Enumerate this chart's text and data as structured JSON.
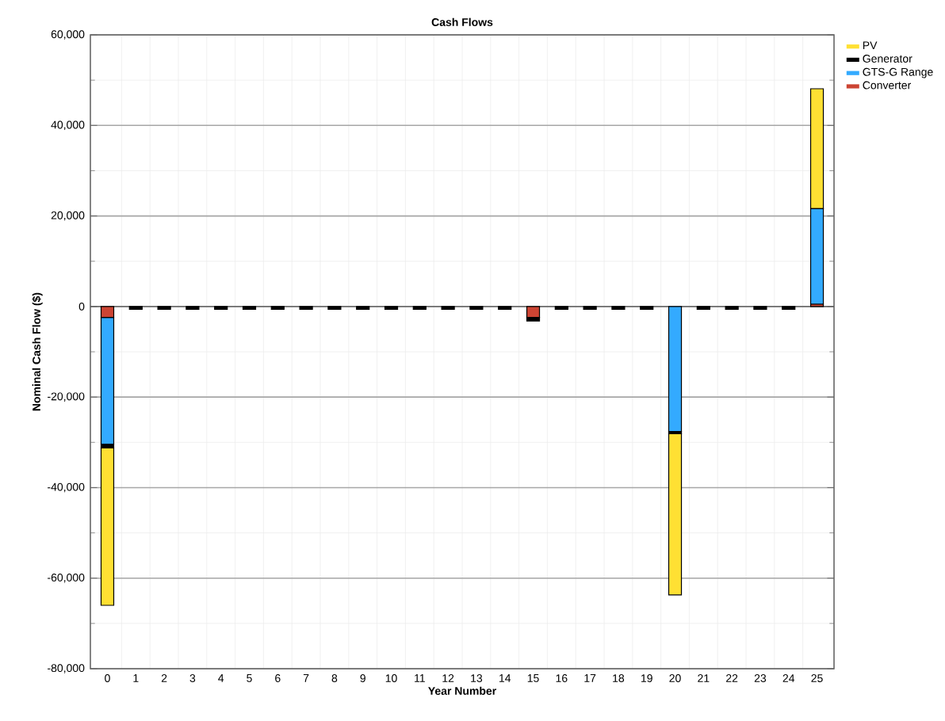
{
  "chart_data": {
    "type": "bar",
    "title": "Cash Flows",
    "xlabel": "Year Number",
    "ylabel": "Nominal Cash Flow ($)",
    "categories": [
      "0",
      "1",
      "2",
      "3",
      "4",
      "5",
      "6",
      "7",
      "8",
      "9",
      "10",
      "11",
      "12",
      "13",
      "14",
      "15",
      "16",
      "17",
      "18",
      "19",
      "20",
      "21",
      "22",
      "23",
      "24",
      "25"
    ],
    "stacked": true,
    "series": [
      {
        "name": "Converter",
        "color": "#cc4433",
        "values": [
          -2400,
          0,
          0,
          0,
          0,
          0,
          0,
          0,
          0,
          0,
          0,
          0,
          0,
          0,
          0,
          -2400,
          0,
          0,
          0,
          0,
          0,
          0,
          0,
          0,
          0,
          500
        ]
      },
      {
        "name": "GTS-G Range",
        "color": "#33aaff",
        "values": [
          -28000,
          0,
          0,
          0,
          0,
          0,
          0,
          0,
          0,
          0,
          0,
          0,
          0,
          0,
          0,
          0,
          0,
          0,
          0,
          0,
          -27600,
          0,
          0,
          0,
          0,
          21100
        ]
      },
      {
        "name": "Generator",
        "color": "#000000",
        "values": [
          -800,
          -600,
          -600,
          -600,
          -600,
          -600,
          -600,
          -600,
          -600,
          -600,
          -600,
          -600,
          -600,
          -600,
          -600,
          -800,
          -600,
          -600,
          -600,
          -600,
          -500,
          -600,
          -600,
          -600,
          -600,
          0
        ]
      },
      {
        "name": "PV",
        "color": "#ffe033",
        "values": [
          -34800,
          0,
          0,
          0,
          0,
          0,
          0,
          0,
          0,
          0,
          0,
          0,
          0,
          0,
          0,
          0,
          0,
          0,
          0,
          0,
          -35600,
          0,
          0,
          0,
          0,
          26500
        ]
      }
    ],
    "ylim": [
      -80000,
      60000
    ],
    "yticks": [
      {
        "value": -80000,
        "label": "-80,000"
      },
      {
        "value": -60000,
        "label": "-60,000"
      },
      {
        "value": -40000,
        "label": "-40,000"
      },
      {
        "value": -20000,
        "label": "-20,000"
      },
      0,
      {
        "value": 20000,
        "label": "20,000"
      },
      {
        "value": 40000,
        "label": "40,000"
      },
      {
        "value": 60000,
        "label": "60,000"
      }
    ],
    "grid": true,
    "legend": "top right"
  }
}
